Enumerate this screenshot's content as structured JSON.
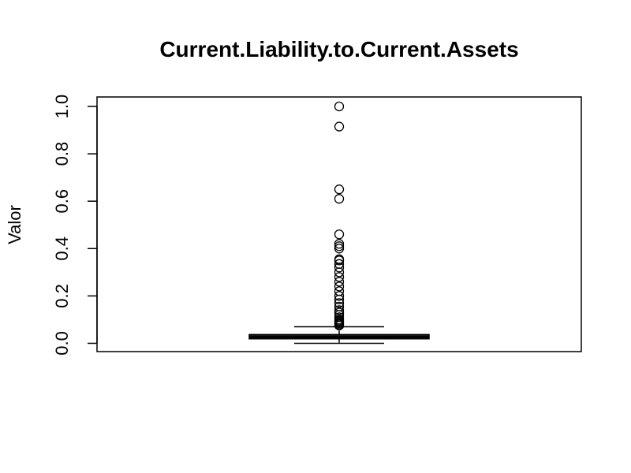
{
  "chart_data": {
    "type": "boxplot",
    "title": "Current.Liability.to.Current.Assets",
    "xlabel": "",
    "ylabel": "Valor",
    "ylim": [
      -0.035,
      1.04
    ],
    "y_ticks": [
      0.0,
      0.2,
      0.4,
      0.6,
      0.8,
      1.0
    ],
    "y_tick_labels": [
      "0.0",
      "0.2",
      "0.4",
      "0.6",
      "0.8",
      "1.0"
    ],
    "grid": false,
    "legend": "none",
    "box": {
      "whisker_low": 0.0,
      "q1": 0.019,
      "median": 0.028,
      "q3": 0.037,
      "whisker_high": 0.07
    },
    "outliers": [
      1.0,
      0.915,
      0.65,
      0.61,
      0.46,
      0.42,
      0.41,
      0.4,
      0.355,
      0.35,
      0.335,
      0.32,
      0.3,
      0.28,
      0.26,
      0.24,
      0.22,
      0.2,
      0.185,
      0.17,
      0.155,
      0.14,
      0.13,
      0.12,
      0.11,
      0.1,
      0.095,
      0.09,
      0.085,
      0.08,
      0.075
    ]
  }
}
